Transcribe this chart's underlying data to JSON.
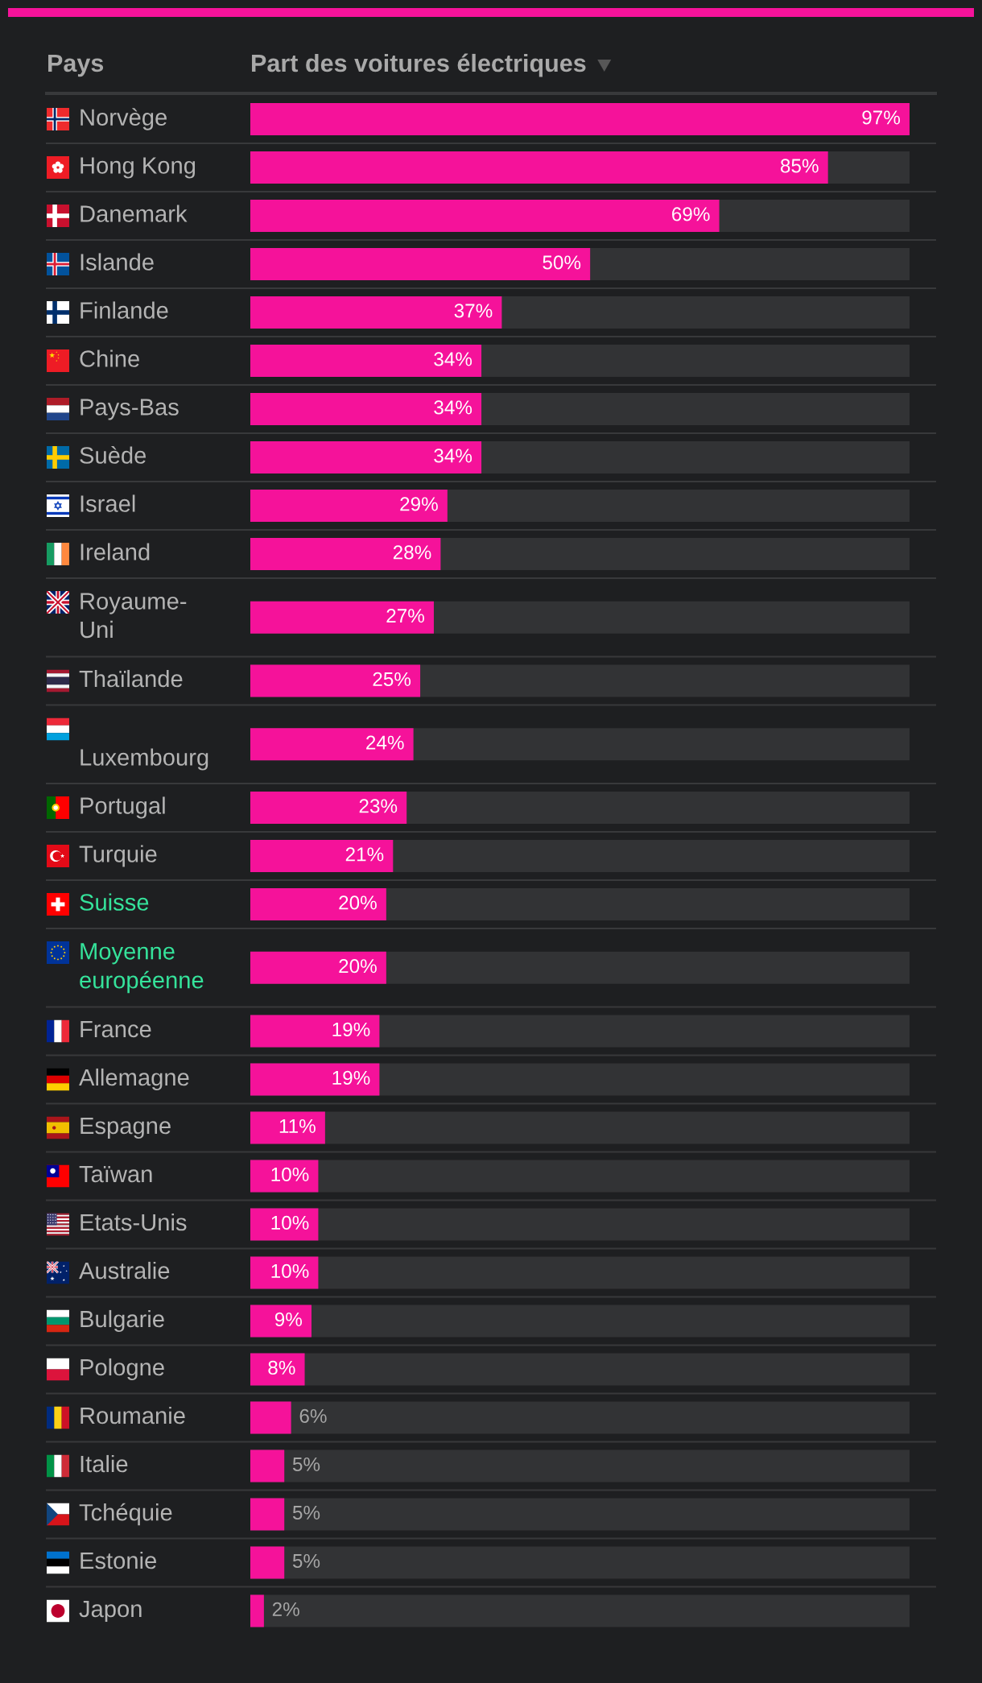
{
  "chart_data": {
    "type": "bar",
    "orientation": "horizontal",
    "ylabel": "Pays",
    "xlabel": "Part des voitures électriques",
    "categories": [
      "Norvège",
      "Hong Kong",
      "Danemark",
      "Islande",
      "Finlande",
      "Chine",
      "Pays-Bas",
      "Suède",
      "Israel",
      "Ireland",
      "Royaume-Uni",
      "Thaïlande",
      "Luxembourg",
      "Portugal",
      "Turquie",
      "Suisse",
      "Moyenne européenne",
      "France",
      "Allemagne",
      "Espagne",
      "Taïwan",
      "Etats-Unis",
      "Australie",
      "Bulgarie",
      "Pologne",
      "Roumanie",
      "Italie",
      "Tchéquie",
      "Estonie",
      "Japon"
    ],
    "values": [
      97,
      85,
      69,
      50,
      37,
      34,
      34,
      34,
      29,
      28,
      27,
      25,
      24,
      23,
      21,
      20,
      20,
      19,
      19,
      11,
      10,
      10,
      10,
      9,
      8,
      6,
      5,
      5,
      5,
      2
    ],
    "value_labels": [
      "97%",
      "85%",
      "69%",
      "50%",
      "37%",
      "34%",
      "34%",
      "34%",
      "29%",
      "28%",
      "27%",
      "25%",
      "24%",
      "23%",
      "21%",
      "20%",
      "20%",
      "19%",
      "19%",
      "11%",
      "10%",
      "10%",
      "10%",
      "9%",
      "8%",
      "6%",
      "5%",
      "5%",
      "5%",
      "2%"
    ],
    "color": "#f5129a",
    "xlim": [
      0,
      97
    ],
    "tick_labels": "y"
  }
}
